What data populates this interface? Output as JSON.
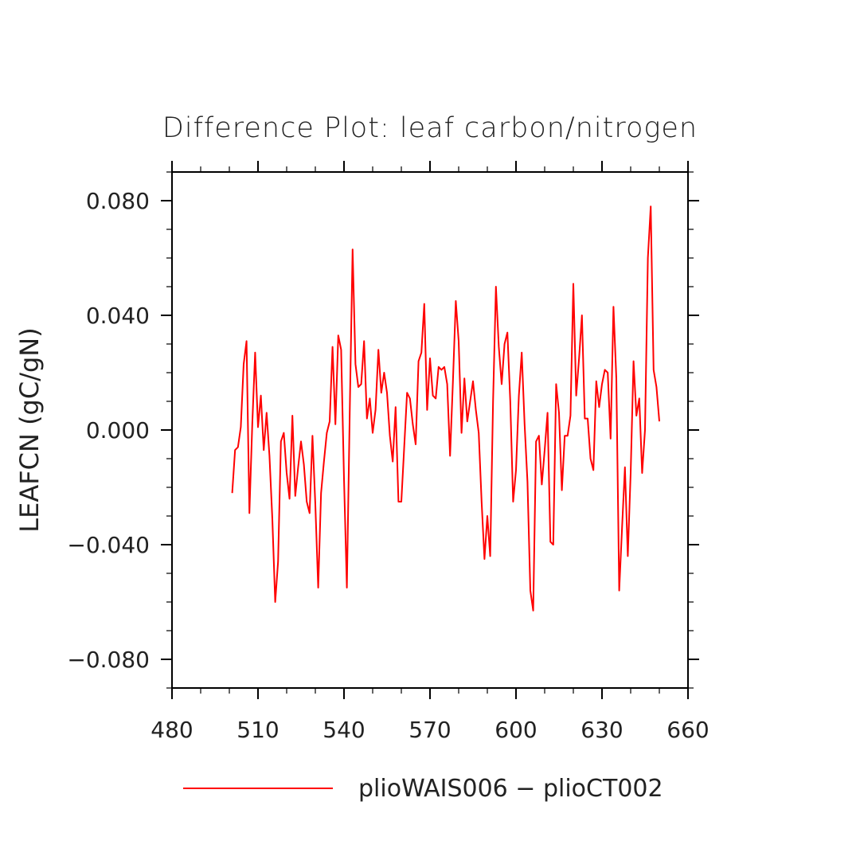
{
  "colors": {
    "series": "#ff0000",
    "axis": "#000000",
    "text": "#222222"
  },
  "chart_data": {
    "type": "line",
    "title": "Difference Plot: leaf carbon/nitrogen",
    "xlabel": "",
    "ylabel": "LEAFCN  (gC/gN)",
    "xlim": [
      480,
      660
    ],
    "ylim": [
      -0.09,
      0.09
    ],
    "xticks": [
      480,
      510,
      540,
      570,
      600,
      630,
      660
    ],
    "xtick_labels": [
      "480",
      "510",
      "540",
      "570",
      "600",
      "630",
      "660"
    ],
    "yticks": [
      -0.08,
      -0.04,
      0.0,
      0.04,
      0.08
    ],
    "ytick_labels": [
      "−0.080",
      "−0.040",
      "0.000",
      "0.040",
      "0.080"
    ],
    "grid": false,
    "legend_position": "bottom",
    "series": [
      {
        "name": "plioWAIS006 − plioCT002",
        "color": "#ff0000",
        "x_start": 501,
        "x_step": 1,
        "values": [
          -0.022,
          -0.007,
          -0.006,
          0.001,
          0.023,
          0.031,
          -0.029,
          0.002,
          0.027,
          0.001,
          0.012,
          -0.007,
          0.006,
          -0.009,
          -0.031,
          -0.06,
          -0.046,
          -0.004,
          -0.001,
          -0.015,
          -0.024,
          0.005,
          -0.023,
          -0.013,
          -0.004,
          -0.012,
          -0.025,
          -0.029,
          -0.002,
          -0.026,
          -0.055,
          -0.022,
          -0.011,
          -0.001,
          0.003,
          0.029,
          0.002,
          0.033,
          0.028,
          -0.017,
          -0.055,
          0.006,
          0.063,
          0.023,
          0.015,
          0.016,
          0.031,
          0.004,
          0.011,
          -0.001,
          0.007,
          0.028,
          0.013,
          0.02,
          0.013,
          -0.002,
          -0.011,
          0.008,
          -0.025,
          -0.025,
          -0.006,
          0.013,
          0.011,
          0.002,
          -0.005,
          0.024,
          0.027,
          0.044,
          0.007,
          0.025,
          0.012,
          0.011,
          0.022,
          0.021,
          0.022,
          0.016,
          -0.009,
          0.017,
          0.045,
          0.031,
          -0.001,
          0.018,
          0.003,
          0.01,
          0.017,
          0.007,
          -0.001,
          -0.025,
          -0.045,
          -0.03,
          -0.044,
          0.01,
          0.05,
          0.029,
          0.016,
          0.03,
          0.034,
          0.01,
          -0.025,
          -0.014,
          0.012,
          0.027,
          0.002,
          -0.018,
          -0.056,
          -0.063,
          -0.004,
          -0.002,
          -0.019,
          -0.007,
          0.006,
          -0.039,
          -0.04,
          0.016,
          0.006,
          -0.021,
          -0.002,
          -0.002,
          0.005,
          0.051,
          0.012,
          0.025,
          0.04,
          0.004,
          0.004,
          -0.01,
          -0.014,
          0.017,
          0.008,
          0.016,
          0.021,
          0.02,
          -0.003,
          0.043,
          0.018,
          -0.056,
          -0.034,
          -0.013,
          -0.044,
          -0.015,
          0.024,
          0.005,
          0.011,
          -0.015,
          0.0,
          0.06,
          0.078,
          0.021,
          0.015,
          0.003
        ]
      }
    ]
  }
}
